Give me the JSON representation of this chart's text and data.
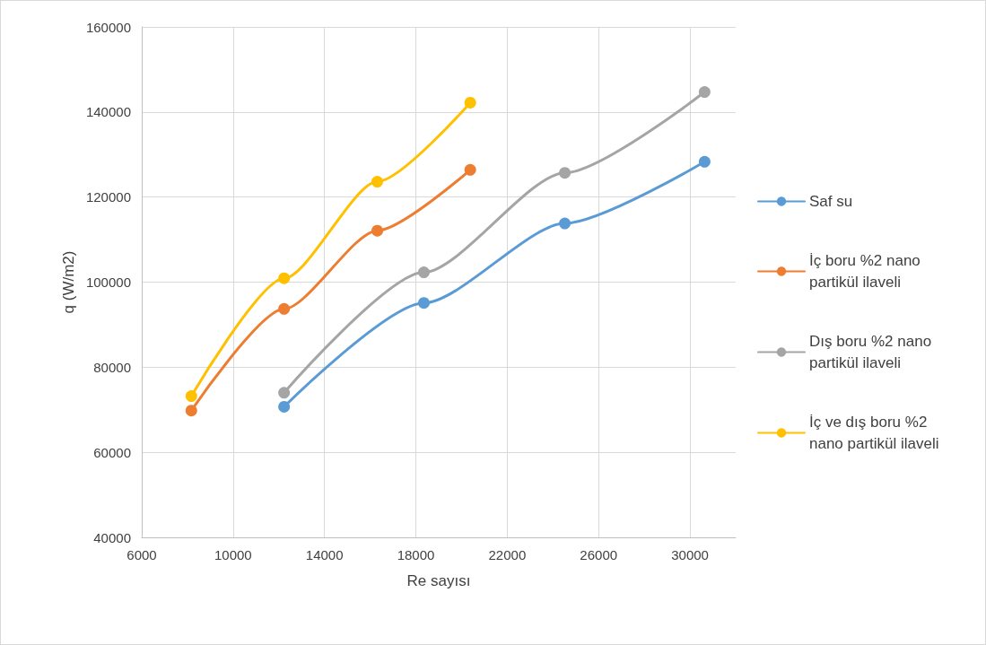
{
  "chart_data": {
    "type": "line",
    "xlabel": "Re sayısı",
    "ylabel": "q (W/m2)",
    "xlim": [
      6000,
      32000
    ],
    "xticks": [
      6000,
      10000,
      14000,
      18000,
      22000,
      26000,
      30000
    ],
    "ylim": [
      40000,
      160000
    ],
    "yticks": [
      40000,
      60000,
      80000,
      100000,
      120000,
      140000,
      160000
    ],
    "grid": true,
    "legend": "right",
    "marker": "circle",
    "line_style": "solid",
    "series": [
      {
        "name": "Saf su",
        "color": "#5b9bd5",
        "x": [
          12230,
          18350,
          24520,
          30640
        ],
        "values": [
          70700,
          95100,
          113800,
          128300
        ]
      },
      {
        "name": "İç boru %2 nano partikül ilaveli",
        "color": "#ed7d31",
        "x": [
          8170,
          12230,
          16310,
          20380
        ],
        "values": [
          69800,
          93700,
          112100,
          126400
        ]
      },
      {
        "name": "Dış boru %2 nano partikül ilaveli",
        "color": "#a5a5a5",
        "x": [
          12230,
          18350,
          24520,
          30640
        ],
        "values": [
          74000,
          102300,
          125700,
          144700
        ]
      },
      {
        "name": "İç ve dış boru %2 nano partikül ilaveli",
        "color": "#ffc000",
        "x": [
          8170,
          12230,
          16310,
          20380
        ],
        "values": [
          73200,
          100900,
          123600,
          142200
        ]
      }
    ]
  }
}
